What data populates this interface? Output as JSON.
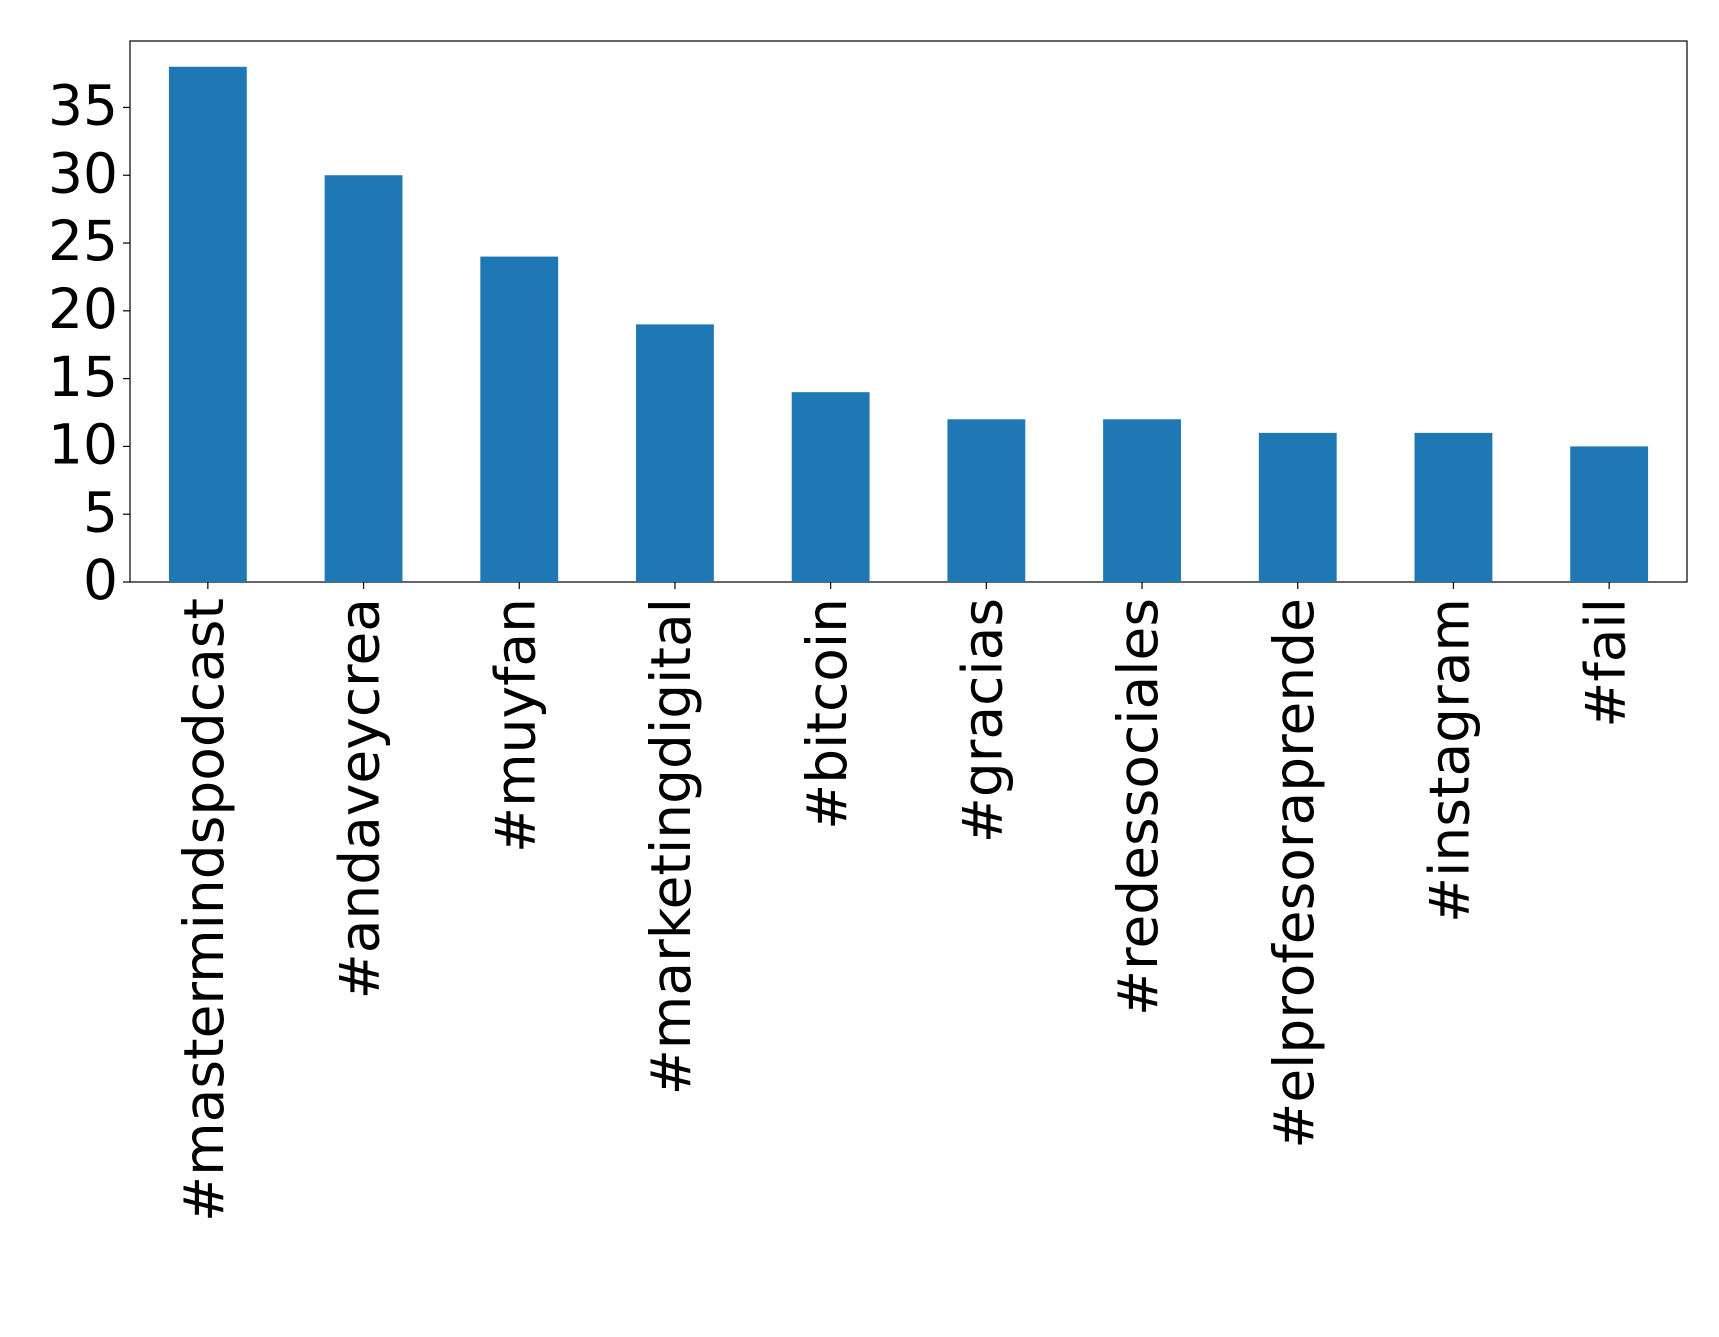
{
  "chart_data": {
    "type": "bar",
    "categories": [
      "#mastermindspodcast",
      "#andaveycrea",
      "#muyfan",
      "#marketingdigital",
      "#bitcoin",
      "#gracias",
      "#redessociales",
      "#elprofesoraprende",
      "#instagram",
      "#fail"
    ],
    "values": [
      38,
      30,
      24,
      19,
      14,
      12,
      12,
      11,
      11,
      10
    ],
    "color": "#1f77b4",
    "ylim": [
      0,
      39.9
    ],
    "yticks": [
      0,
      5,
      10,
      15,
      20,
      25,
      30,
      35
    ],
    "grid": false
  }
}
